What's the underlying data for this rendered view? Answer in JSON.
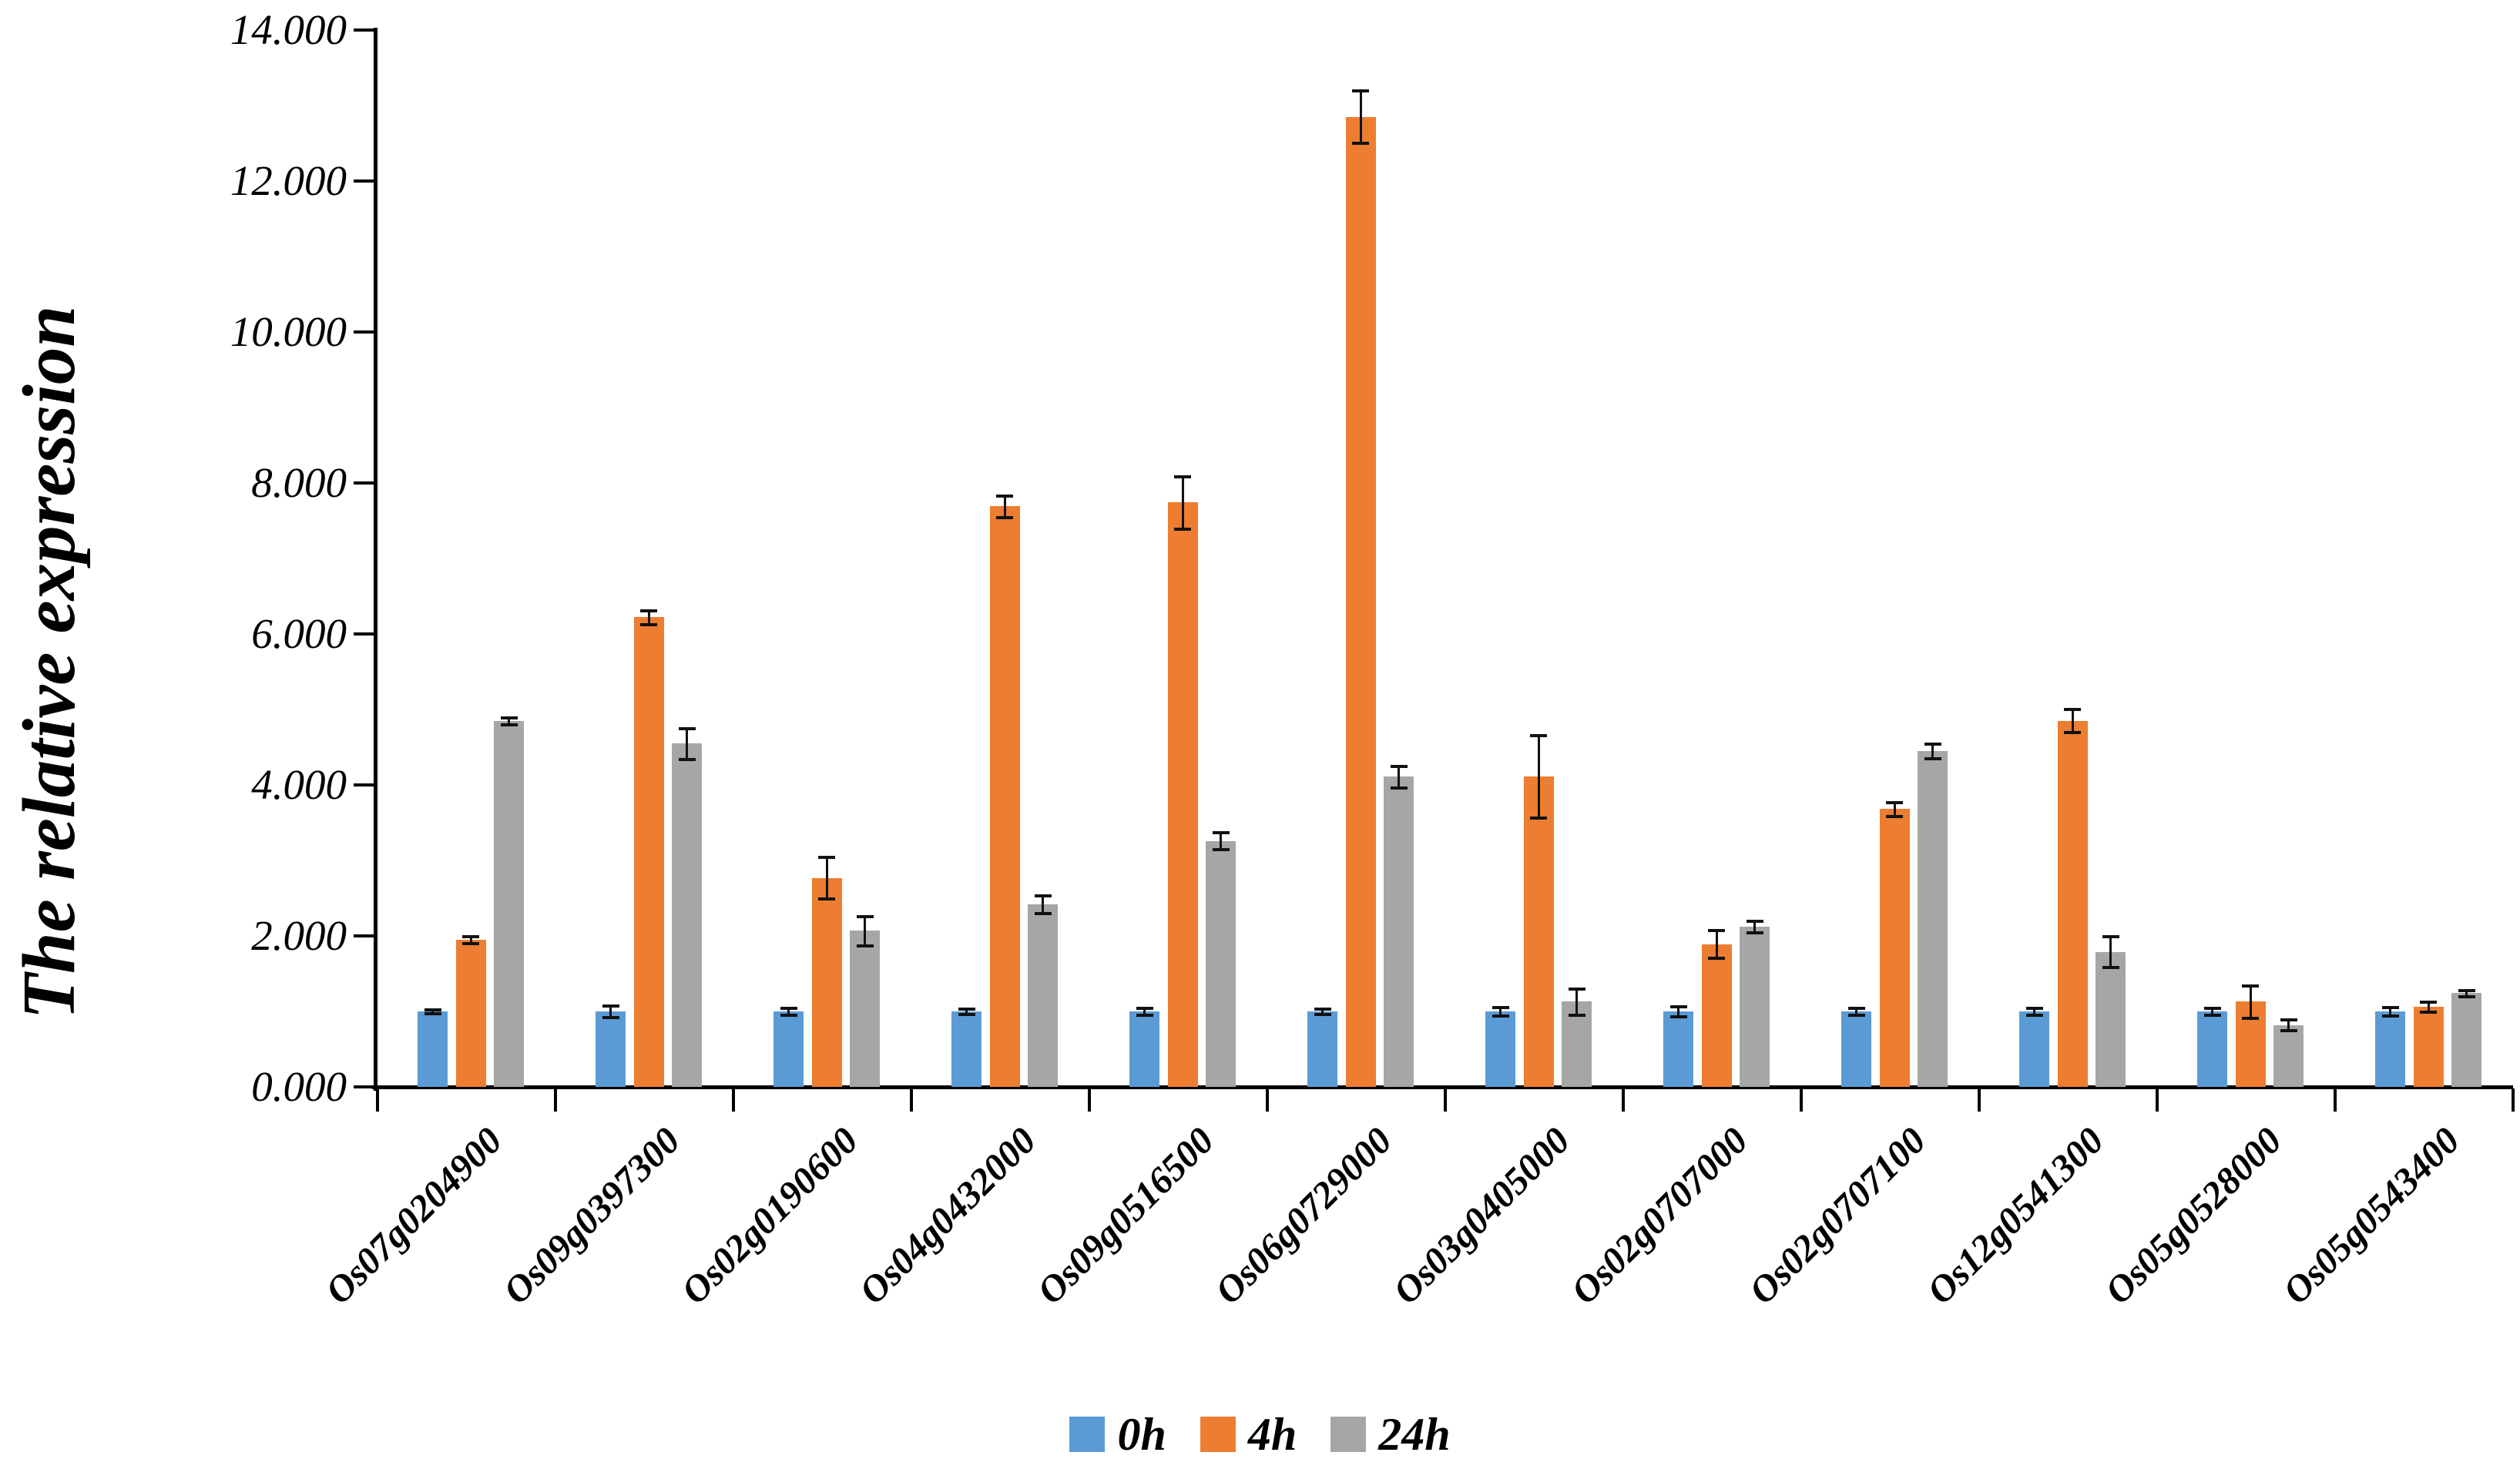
{
  "chart_data": {
    "type": "bar",
    "title": "",
    "ylabel": "The relative expression",
    "xlabel": "",
    "ylim": [
      0,
      14
    ],
    "ytick_step": 2,
    "ytick_labels": [
      "0.000",
      "2.000",
      "4.000",
      "6.000",
      "8.000",
      "10.000",
      "12.000",
      "14.000"
    ],
    "grid": false,
    "legend_position": "bottom",
    "error_bars": true,
    "background_color": "#ffffff",
    "axis_color": "#000000",
    "categories": [
      "Os07g0204900",
      "Os09g0397300",
      "Os02g0190600",
      "Os04g0432000",
      "Os09g0516500",
      "Os06g0729000",
      "Os03g0405000",
      "Os02g0707000",
      "Os02g0707100",
      "Os12g0541300",
      "Os05g0528000",
      "Os05g0543400"
    ],
    "series": [
      {
        "name": "0h",
        "color": "#5b9bd5",
        "values": [
          1.0,
          1.0,
          1.0,
          1.0,
          1.0,
          1.0,
          1.0,
          1.0,
          1.0,
          1.0,
          1.0,
          1.0
        ],
        "errors": [
          0.03,
          0.08,
          0.05,
          0.04,
          0.05,
          0.04,
          0.06,
          0.07,
          0.05,
          0.05,
          0.05,
          0.06
        ]
      },
      {
        "name": "4h",
        "color": "#ed7d31",
        "values": [
          1.95,
          6.22,
          2.77,
          7.69,
          7.74,
          12.85,
          4.11,
          1.89,
          3.68,
          4.85,
          1.13,
          1.06
        ],
        "errors": [
          0.05,
          0.1,
          0.28,
          0.15,
          0.35,
          0.35,
          0.55,
          0.19,
          0.1,
          0.16,
          0.22,
          0.07
        ]
      },
      {
        "name": "24h",
        "color": "#a6a6a6",
        "values": [
          4.85,
          4.55,
          2.07,
          2.42,
          3.26,
          4.11,
          1.13,
          2.12,
          4.45,
          1.79,
          0.82,
          1.24
        ],
        "errors": [
          0.05,
          0.21,
          0.2,
          0.12,
          0.12,
          0.15,
          0.18,
          0.08,
          0.1,
          0.21,
          0.08,
          0.05
        ]
      }
    ]
  }
}
